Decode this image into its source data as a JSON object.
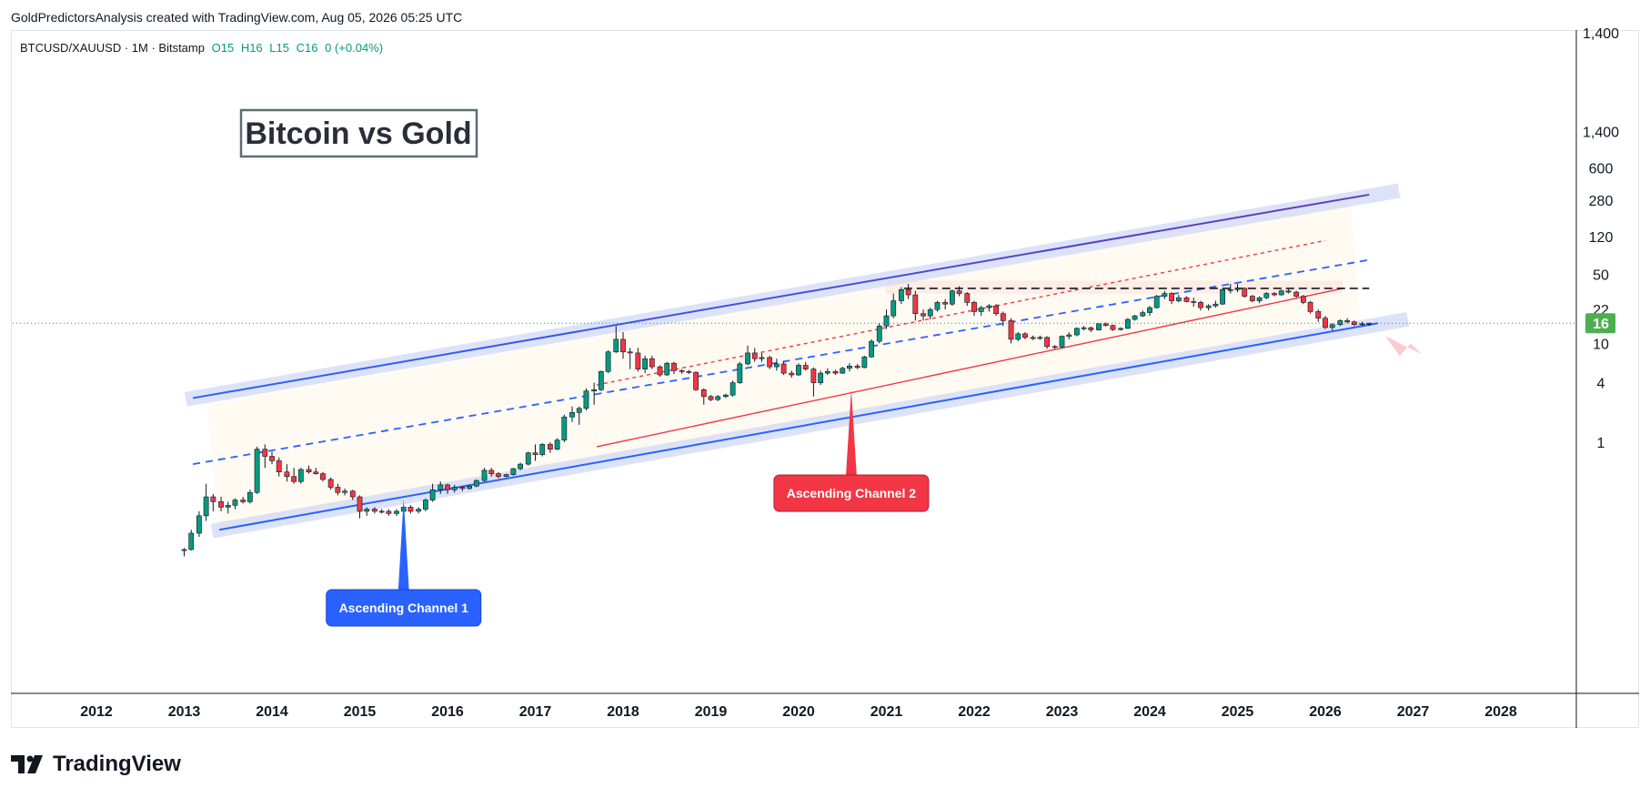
{
  "header": {
    "caption": "GoldPredictorsAnalysis created with TradingView.com, Aug 05, 2026 05:25 UTC"
  },
  "legend": {
    "symbol": "BTCUSD/XAUUSD · 1M · Bitstamp",
    "open": "O15",
    "high": "H16",
    "low": "L15",
    "close": "C16",
    "change": "0 (+0.04%)"
  },
  "footer": {
    "brand": "TradingView"
  },
  "colors": {
    "up": "#089981",
    "down": "#f23645",
    "channel_blue": "#2962ff",
    "channel_purple": "#673ab7",
    "label_blue": "#2962ff",
    "label_red": "#f23645",
    "price_badge": "#4caf50"
  },
  "chart_data": {
    "type": "candlestick",
    "title": "Bitcoin vs Gold",
    "yscale": "log",
    "ylim": [
      0.1,
      1400
    ],
    "y_ticks": [
      {
        "v": 1400,
        "label": "1,400"
      },
      {
        "v": 600,
        "label": "600"
      },
      {
        "v": 280,
        "label": "280"
      },
      {
        "v": 120,
        "label": "120"
      },
      {
        "v": 50,
        "label": "50"
      },
      {
        "v": 22,
        "label": "22"
      },
      {
        "v": 10,
        "label": "10"
      },
      {
        "v": 4,
        "label": "4"
      },
      {
        "v": 1,
        "label": "1"
      }
    ],
    "x_ticks": [
      "2012",
      "2013",
      "2014",
      "2015",
      "2016",
      "2017",
      "2018",
      "2019",
      "2020",
      "2021",
      "2022",
      "2023",
      "2024",
      "2025",
      "2026",
      "2027",
      "2028"
    ],
    "last_price": {
      "value": 16,
      "label": "16"
    },
    "annotations": [
      {
        "text": "Ascending Channel 1",
        "color": "blue",
        "year": 2015.5,
        "anchor_value": 0.27
      },
      {
        "text": "Ascending Channel 2",
        "color": "red",
        "year": 2020.6,
        "anchor_value": 3.4
      }
    ],
    "channel_lines": [
      {
        "name": "upper",
        "from": [
          2013.1,
          2.8
        ],
        "to": [
          2026.5,
          320
        ],
        "color": "#2962ff->#673ab7"
      },
      {
        "name": "lower",
        "from": [
          2013.4,
          0.13
        ],
        "to": [
          2026.6,
          16
        ],
        "color": "#2962ff"
      },
      {
        "name": "mid",
        "from": [
          2013.1,
          0.6
        ],
        "to": [
          2026.5,
          70
        ],
        "style": "dashed",
        "color": "#2962ff"
      },
      {
        "name": "red-solid",
        "from": [
          2017.7,
          0.9
        ],
        "to": [
          2026.2,
          36
        ],
        "color": "#f23645"
      },
      {
        "name": "red-dashed",
        "from": [
          2017.7,
          3.8
        ],
        "to": [
          2026.0,
          110
        ],
        "style": "dashed",
        "color": "#f23645"
      },
      {
        "name": "resistance",
        "from": [
          2021.2,
          36
        ],
        "to": [
          2026.5,
          36
        ],
        "style": "dashed",
        "color": "#131722"
      }
    ],
    "candles": [
      [
        2013.0,
        0.08,
        0.085,
        0.07,
        0.082
      ],
      [
        2013.08,
        0.082,
        0.13,
        0.08,
        0.12
      ],
      [
        2013.17,
        0.12,
        0.2,
        0.11,
        0.18
      ],
      [
        2013.25,
        0.18,
        0.38,
        0.16,
        0.28
      ],
      [
        2013.33,
        0.28,
        0.3,
        0.2,
        0.25
      ],
      [
        2013.42,
        0.25,
        0.28,
        0.2,
        0.22
      ],
      [
        2013.5,
        0.22,
        0.25,
        0.19,
        0.23
      ],
      [
        2013.58,
        0.23,
        0.27,
        0.21,
        0.26
      ],
      [
        2013.67,
        0.26,
        0.28,
        0.24,
        0.25
      ],
      [
        2013.75,
        0.25,
        0.33,
        0.24,
        0.31
      ],
      [
        2013.83,
        0.31,
        0.9,
        0.3,
        0.85
      ],
      [
        2013.92,
        0.85,
        0.95,
        0.55,
        0.72
      ],
      [
        2014.0,
        0.72,
        0.8,
        0.6,
        0.65
      ],
      [
        2014.08,
        0.65,
        0.7,
        0.45,
        0.5
      ],
      [
        2014.17,
        0.5,
        0.6,
        0.4,
        0.45
      ],
      [
        2014.25,
        0.45,
        0.55,
        0.38,
        0.4
      ],
      [
        2014.33,
        0.4,
        0.55,
        0.38,
        0.53
      ],
      [
        2014.42,
        0.53,
        0.58,
        0.48,
        0.5
      ],
      [
        2014.5,
        0.5,
        0.55,
        0.47,
        0.48
      ],
      [
        2014.58,
        0.48,
        0.5,
        0.4,
        0.42
      ],
      [
        2014.67,
        0.42,
        0.44,
        0.33,
        0.35
      ],
      [
        2014.75,
        0.35,
        0.38,
        0.29,
        0.31
      ],
      [
        2014.83,
        0.31,
        0.34,
        0.29,
        0.32
      ],
      [
        2014.92,
        0.32,
        0.33,
        0.26,
        0.28
      ],
      [
        2015.0,
        0.28,
        0.29,
        0.17,
        0.2
      ],
      [
        2015.08,
        0.2,
        0.22,
        0.18,
        0.21
      ],
      [
        2015.17,
        0.21,
        0.22,
        0.19,
        0.2
      ],
      [
        2015.25,
        0.2,
        0.21,
        0.19,
        0.2
      ],
      [
        2015.33,
        0.2,
        0.21,
        0.18,
        0.19
      ],
      [
        2015.42,
        0.19,
        0.21,
        0.18,
        0.2
      ],
      [
        2015.5,
        0.2,
        0.23,
        0.19,
        0.22
      ],
      [
        2015.58,
        0.22,
        0.23,
        0.19,
        0.2
      ],
      [
        2015.67,
        0.2,
        0.22,
        0.19,
        0.21
      ],
      [
        2015.75,
        0.21,
        0.27,
        0.2,
        0.26
      ],
      [
        2015.83,
        0.26,
        0.38,
        0.25,
        0.33
      ],
      [
        2015.92,
        0.33,
        0.4,
        0.3,
        0.37
      ],
      [
        2016.0,
        0.37,
        0.38,
        0.3,
        0.33
      ],
      [
        2016.08,
        0.33,
        0.37,
        0.31,
        0.35
      ],
      [
        2016.17,
        0.35,
        0.36,
        0.32,
        0.34
      ],
      [
        2016.25,
        0.34,
        0.37,
        0.33,
        0.36
      ],
      [
        2016.33,
        0.36,
        0.42,
        0.35,
        0.41
      ],
      [
        2016.42,
        0.41,
        0.55,
        0.4,
        0.52
      ],
      [
        2016.5,
        0.52,
        0.55,
        0.45,
        0.48
      ],
      [
        2016.58,
        0.48,
        0.5,
        0.43,
        0.45
      ],
      [
        2016.67,
        0.45,
        0.48,
        0.44,
        0.47
      ],
      [
        2016.75,
        0.47,
        0.55,
        0.46,
        0.54
      ],
      [
        2016.83,
        0.54,
        0.62,
        0.52,
        0.6
      ],
      [
        2016.92,
        0.6,
        0.8,
        0.58,
        0.78
      ],
      [
        2017.0,
        0.78,
        0.95,
        0.65,
        0.75
      ],
      [
        2017.08,
        0.75,
        0.98,
        0.72,
        0.95
      ],
      [
        2017.17,
        0.95,
        1.0,
        0.78,
        0.85
      ],
      [
        2017.25,
        0.85,
        1.1,
        0.83,
        1.05
      ],
      [
        2017.33,
        1.05,
        1.9,
        1.0,
        1.8
      ],
      [
        2017.42,
        1.8,
        2.3,
        1.6,
        2.0
      ],
      [
        2017.5,
        2.0,
        2.3,
        1.5,
        2.2
      ],
      [
        2017.58,
        2.2,
        3.5,
        2.1,
        3.3
      ],
      [
        2017.67,
        3.3,
        4.0,
        2.4,
        3.4
      ],
      [
        2017.75,
        3.4,
        5.3,
        3.3,
        5.2
      ],
      [
        2017.83,
        5.2,
        8.5,
        5.0,
        8.2
      ],
      [
        2017.92,
        8.2,
        15.0,
        8.0,
        11.0
      ],
      [
        2018.0,
        11.0,
        13.0,
        7.0,
        8.2
      ],
      [
        2018.08,
        8.2,
        9.0,
        5.5,
        8.0
      ],
      [
        2018.17,
        8.0,
        9.0,
        5.2,
        5.5
      ],
      [
        2018.25,
        5.5,
        7.5,
        5.0,
        7.0
      ],
      [
        2018.33,
        7.0,
        7.5,
        5.5,
        5.8
      ],
      [
        2018.42,
        5.8,
        6.0,
        4.6,
        4.8
      ],
      [
        2018.5,
        4.8,
        6.5,
        4.7,
        6.3
      ],
      [
        2018.58,
        6.3,
        6.5,
        4.9,
        5.3
      ],
      [
        2018.67,
        5.3,
        5.5,
        4.9,
        5.2
      ],
      [
        2018.75,
        5.2,
        5.4,
        4.9,
        5.1
      ],
      [
        2018.83,
        5.1,
        5.2,
        3.3,
        3.4
      ],
      [
        2018.92,
        3.4,
        3.5,
        2.4,
        2.9
      ],
      [
        2019.0,
        2.9,
        3.0,
        2.6,
        2.7
      ],
      [
        2019.08,
        2.7,
        3.0,
        2.6,
        2.9
      ],
      [
        2019.17,
        2.9,
        3.1,
        2.8,
        3.0
      ],
      [
        2019.25,
        3.0,
        4.2,
        2.9,
        4.0
      ],
      [
        2019.33,
        4.0,
        6.5,
        3.9,
        6.2
      ],
      [
        2019.42,
        6.2,
        9.5,
        6.0,
        8.0
      ],
      [
        2019.5,
        8.0,
        9.0,
        6.5,
        7.0
      ],
      [
        2019.58,
        7.0,
        8.0,
        6.5,
        7.2
      ],
      [
        2019.67,
        7.2,
        7.5,
        5.5,
        5.8
      ],
      [
        2019.75,
        5.8,
        7.0,
        5.3,
        6.2
      ],
      [
        2019.83,
        6.2,
        6.5,
        4.8,
        5.0
      ],
      [
        2019.92,
        5.0,
        5.3,
        4.5,
        4.8
      ],
      [
        2020.0,
        4.8,
        6.3,
        4.7,
        6.0
      ],
      [
        2020.08,
        6.0,
        6.5,
        5.3,
        5.5
      ],
      [
        2020.17,
        5.5,
        5.7,
        2.9,
        4.0
      ],
      [
        2020.25,
        4.0,
        5.3,
        3.8,
        5.0
      ],
      [
        2020.33,
        5.0,
        5.6,
        4.8,
        5.2
      ],
      [
        2020.42,
        5.2,
        5.4,
        4.8,
        5.0
      ],
      [
        2020.5,
        5.0,
        5.8,
        4.9,
        5.6
      ],
      [
        2020.58,
        5.6,
        6.3,
        5.2,
        5.9
      ],
      [
        2020.67,
        5.9,
        6.2,
        5.5,
        5.7
      ],
      [
        2020.75,
        5.7,
        7.5,
        5.6,
        7.3
      ],
      [
        2020.83,
        7.3,
        11.0,
        7.2,
        10.5
      ],
      [
        2020.92,
        10.5,
        16.0,
        10.0,
        15.0
      ],
      [
        2021.0,
        15.0,
        22.0,
        14.0,
        19.0
      ],
      [
        2021.08,
        19.0,
        32.0,
        18.0,
        27.0
      ],
      [
        2021.17,
        27.0,
        37.0,
        25.0,
        35.0
      ],
      [
        2021.25,
        35.0,
        40.0,
        28.0,
        31.0
      ],
      [
        2021.33,
        31.0,
        34.0,
        17.0,
        20.0
      ],
      [
        2021.42,
        20.0,
        22.0,
        17.0,
        19.0
      ],
      [
        2021.5,
        19.0,
        23.0,
        17.5,
        22.0
      ],
      [
        2021.58,
        22.0,
        27.0,
        21.0,
        26.0
      ],
      [
        2021.67,
        26.0,
        28.0,
        22.0,
        25.0
      ],
      [
        2021.75,
        25.0,
        35.0,
        24.0,
        34.0
      ],
      [
        2021.83,
        34.0,
        38.0,
        30.0,
        32.0
      ],
      [
        2021.92,
        32.0,
        33.0,
        24.0,
        26.0
      ],
      [
        2022.0,
        26.0,
        27.0,
        19.0,
        21.0
      ],
      [
        2022.08,
        21.0,
        24.0,
        19.0,
        23.0
      ],
      [
        2022.17,
        23.0,
        25.0,
        21.0,
        24.0
      ],
      [
        2022.25,
        24.0,
        25.0,
        19.0,
        20.0
      ],
      [
        2022.33,
        20.0,
        21.0,
        15.0,
        17.0
      ],
      [
        2022.42,
        17.0,
        18.0,
        10.0,
        11.0
      ],
      [
        2022.5,
        11.0,
        13.0,
        10.5,
        12.5
      ],
      [
        2022.58,
        12.5,
        13.0,
        11.0,
        11.5
      ],
      [
        2022.67,
        11.5,
        12.0,
        10.8,
        11.2
      ],
      [
        2022.75,
        11.2,
        12.0,
        10.9,
        11.5
      ],
      [
        2022.83,
        11.5,
        11.8,
        8.8,
        9.3
      ],
      [
        2022.92,
        9.3,
        9.6,
        8.8,
        9.2
      ],
      [
        2023.0,
        9.2,
        12.0,
        9.0,
        11.8
      ],
      [
        2023.08,
        11.8,
        13.0,
        11.0,
        12.2
      ],
      [
        2023.17,
        12.2,
        14.5,
        11.8,
        14.2
      ],
      [
        2023.25,
        14.2,
        15.0,
        13.5,
        14.4
      ],
      [
        2023.33,
        14.4,
        14.8,
        13.0,
        13.7
      ],
      [
        2023.42,
        13.7,
        16.0,
        13.5,
        15.8
      ],
      [
        2023.5,
        15.8,
        16.2,
        14.8,
        15.2
      ],
      [
        2023.58,
        15.2,
        15.5,
        13.4,
        13.8
      ],
      [
        2023.67,
        13.8,
        14.5,
        13.5,
        14.2
      ],
      [
        2023.75,
        14.2,
        18.0,
        14.0,
        17.5
      ],
      [
        2023.83,
        17.5,
        19.5,
        17.0,
        19.0
      ],
      [
        2023.92,
        19.0,
        21.5,
        18.5,
        20.5
      ],
      [
        2024.0,
        20.5,
        24.0,
        19.0,
        23.0
      ],
      [
        2024.08,
        23.0,
        31.0,
        22.5,
        30.0
      ],
      [
        2024.17,
        30.0,
        34.0,
        28.0,
        32.0
      ],
      [
        2024.25,
        32.0,
        33.0,
        25.0,
        27.0
      ],
      [
        2024.33,
        27.0,
        31.0,
        26.0,
        29.0
      ],
      [
        2024.42,
        29.0,
        30.0,
        26.0,
        26.5
      ],
      [
        2024.5,
        26.5,
        29.0,
        23.5,
        26.0
      ],
      [
        2024.58,
        26.0,
        27.0,
        21.5,
        23.0
      ],
      [
        2024.67,
        23.0,
        25.0,
        21.5,
        24.0
      ],
      [
        2024.75,
        24.0,
        27.0,
        23.0,
        25.0
      ],
      [
        2024.83,
        25.0,
        36.0,
        24.5,
        35.0
      ],
      [
        2024.92,
        35.0,
        40.0,
        32.0,
        35.0
      ],
      [
        2025.0,
        35.0,
        40.0,
        33.0,
        36.0
      ],
      [
        2025.08,
        36.0,
        37.0,
        29.0,
        30.0
      ],
      [
        2025.17,
        30.0,
        31.0,
        26.0,
        27.0
      ],
      [
        2025.25,
        27.0,
        30.0,
        25.5,
        29.0
      ],
      [
        2025.33,
        29.0,
        33.0,
        28.0,
        32.0
      ],
      [
        2025.42,
        32.0,
        33.0,
        30.0,
        31.0
      ],
      [
        2025.5,
        31.0,
        35.0,
        30.5,
        34.0
      ],
      [
        2025.58,
        34.0,
        35.5,
        32.0,
        33.0
      ],
      [
        2025.67,
        33.0,
        34.0,
        29.0,
        30.0
      ],
      [
        2025.75,
        30.0,
        31.0,
        25.0,
        26.0
      ],
      [
        2025.83,
        26.0,
        27.0,
        20.0,
        21.0
      ],
      [
        2025.92,
        21.0,
        22.0,
        16.5,
        18.0
      ],
      [
        2026.0,
        18.0,
        19.0,
        14.0,
        14.5
      ],
      [
        2026.08,
        14.5,
        16.0,
        13.5,
        15.5
      ],
      [
        2026.17,
        15.5,
        17.5,
        15.0,
        17.0
      ],
      [
        2026.25,
        17.0,
        18.0,
        16.0,
        16.5
      ],
      [
        2026.33,
        16.5,
        17.0,
        15.0,
        15.5
      ],
      [
        2026.42,
        15.5,
        16.5,
        15.0,
        15.8
      ],
      [
        2026.5,
        15.8,
        16.2,
        15.0,
        16.0
      ]
    ]
  }
}
